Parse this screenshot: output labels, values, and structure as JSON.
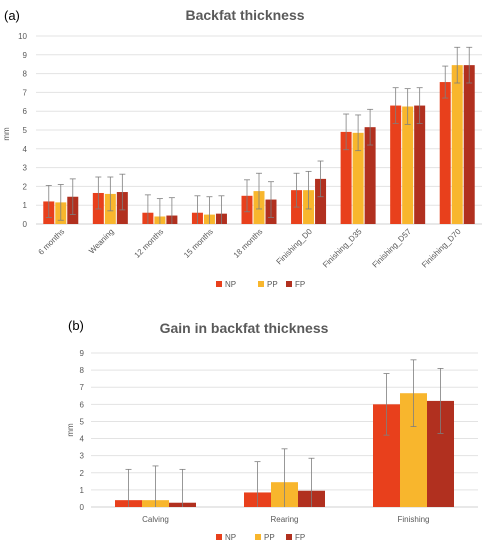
{
  "chart_data": [
    {
      "panel": "(a)",
      "type": "bar",
      "title": "Backfat thickness",
      "xlabel": "",
      "ylabel": "mm",
      "ylim": [
        0,
        10
      ],
      "yticks": [
        0,
        1,
        2,
        3,
        4,
        5,
        6,
        7,
        8,
        9,
        10
      ],
      "grid": "horizontal",
      "legend_position": "bottom",
      "categories": [
        "6 months",
        "Weaning",
        "12 months",
        "15 months",
        "18 months",
        "Finishing_D0",
        "Finishing_D35",
        "Finishing_D57",
        "Finishing_D70"
      ],
      "series": [
        {
          "name": "NP",
          "color": "#e8401c",
          "values": [
            1.2,
            1.65,
            0.6,
            0.6,
            1.5,
            1.8,
            4.9,
            6.3,
            7.55
          ],
          "errors": [
            0.85,
            0.85,
            0.95,
            0.9,
            0.85,
            0.9,
            0.95,
            0.95,
            0.85
          ]
        },
        {
          "name": "PP",
          "color": "#f8b62d",
          "values": [
            1.15,
            1.6,
            0.4,
            0.5,
            1.75,
            1.8,
            4.85,
            6.25,
            8.45
          ],
          "errors": [
            0.95,
            0.9,
            0.95,
            0.95,
            0.95,
            1.0,
            0.95,
            0.95,
            0.95
          ]
        },
        {
          "name": "FP",
          "color": "#b1301f",
          "values": [
            1.45,
            1.7,
            0.45,
            0.55,
            1.3,
            2.4,
            5.15,
            6.3,
            8.45
          ],
          "errors": [
            0.95,
            0.95,
            0.95,
            0.95,
            0.95,
            0.95,
            0.95,
            0.95,
            0.95
          ]
        }
      ]
    },
    {
      "panel": "(b)",
      "type": "bar",
      "title": "Gain in backfat thickness",
      "xlabel": "",
      "ylabel": "mm",
      "ylim": [
        0,
        9
      ],
      "yticks": [
        0,
        1,
        2,
        3,
        4,
        5,
        6,
        7,
        8,
        9
      ],
      "grid": "horizontal",
      "legend_position": "bottom",
      "categories": [
        "Calving",
        "Rearing",
        "Finishing"
      ],
      "series": [
        {
          "name": "NP",
          "color": "#e8401c",
          "values": [
            0.4,
            0.85,
            6.0
          ],
          "errors": [
            1.8,
            1.8,
            1.8
          ]
        },
        {
          "name": "PP",
          "color": "#f8b62d",
          "values": [
            0.4,
            1.45,
            6.65
          ],
          "errors": [
            2.0,
            1.95,
            1.95
          ]
        },
        {
          "name": "FP",
          "color": "#b1301f",
          "values": [
            0.25,
            0.95,
            6.2
          ],
          "errors": [
            1.95,
            1.9,
            1.9
          ]
        }
      ]
    }
  ]
}
